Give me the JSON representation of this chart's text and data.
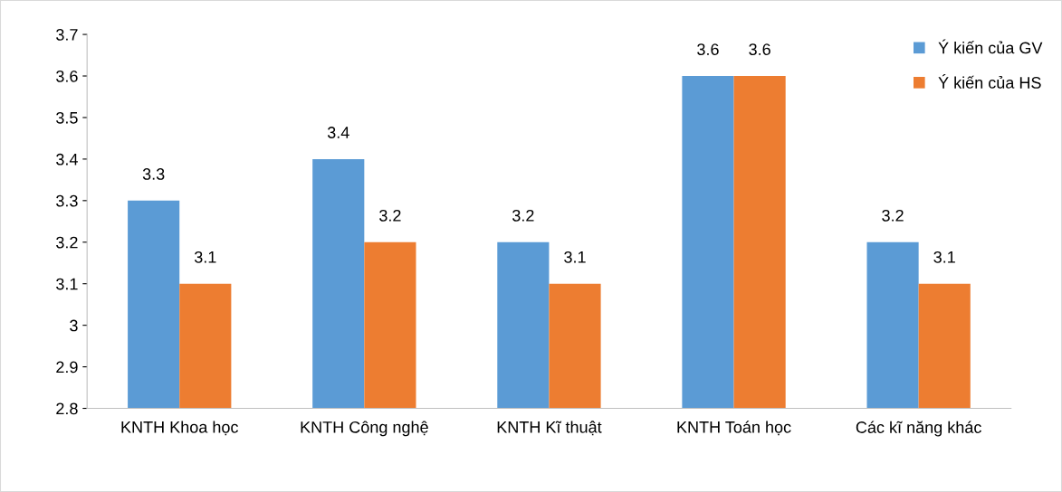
{
  "chart_data": {
    "type": "bar",
    "categories": [
      "KNTH Khoa học",
      "KNTH Công nghệ",
      "KNTH Kĩ thuật",
      "KNTH Toán học",
      "Các kĩ năng khác"
    ],
    "series": [
      {
        "name": "Ý kiến của GV",
        "color": "#5b9bd5",
        "values": [
          3.3,
          3.4,
          3.2,
          3.6,
          3.2
        ]
      },
      {
        "name": "Ý kiến của HS",
        "color": "#ed7d31",
        "values": [
          3.1,
          3.2,
          3.1,
          3.6,
          3.1
        ]
      }
    ],
    "ylim": [
      2.8,
      3.7
    ],
    "yticks": [
      2.8,
      2.9,
      3,
      3.1,
      3.2,
      3.3,
      3.4,
      3.5,
      3.6,
      3.7
    ],
    "data_labels": true,
    "grid": false,
    "legend": "top right"
  }
}
